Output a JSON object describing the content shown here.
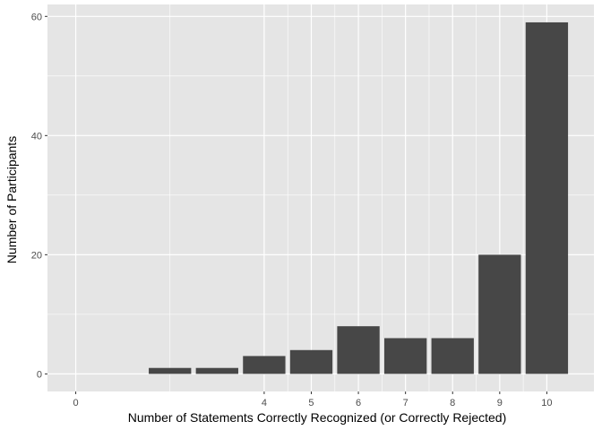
{
  "chart_data": {
    "type": "bar",
    "xlabel": "Number of Statements Correctly Recognized (or Correctly Rejected)",
    "ylabel": "Number of Participants",
    "x_ticks": [
      0,
      4,
      5,
      6,
      7,
      8,
      9,
      10
    ],
    "x_tick_labels": [
      "0",
      "4",
      "5",
      "6",
      "7",
      "8",
      "9",
      "10"
    ],
    "y_ticks": [
      0,
      20,
      40,
      60
    ],
    "y_tick_labels": [
      "0",
      "20",
      "40",
      "60"
    ],
    "xlim": [
      -0.6,
      11.0
    ],
    "ylim": [
      -2.95,
      62.0
    ],
    "bars": [
      {
        "x": 2,
        "value": 1
      },
      {
        "x": 3,
        "value": 1
      },
      {
        "x": 4,
        "value": 3
      },
      {
        "x": 5,
        "value": 4
      },
      {
        "x": 6,
        "value": 8
      },
      {
        "x": 7,
        "value": 6
      },
      {
        "x": 8,
        "value": 6
      },
      {
        "x": 9,
        "value": 20
      },
      {
        "x": 10,
        "value": 59
      }
    ],
    "bar_color": "#474747",
    "panel_background": "#e5e5e5",
    "grid_color": "#ffffff",
    "grid": true
  }
}
